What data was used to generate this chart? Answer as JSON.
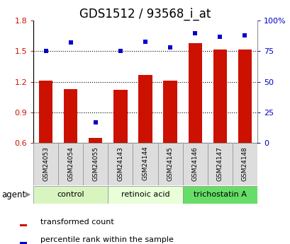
{
  "title": "GDS1512 / 93568_i_at",
  "samples": [
    "GSM24053",
    "GSM24054",
    "GSM24055",
    "GSM24143",
    "GSM24144",
    "GSM24145",
    "GSM24146",
    "GSM24147",
    "GSM24148"
  ],
  "bar_values": [
    1.21,
    1.13,
    0.65,
    1.12,
    1.27,
    1.21,
    1.58,
    1.52,
    1.52
  ],
  "percentile_values": [
    75,
    82,
    17,
    75,
    83,
    78,
    90,
    87,
    88
  ],
  "groups": [
    {
      "label": "control",
      "start": 0,
      "end": 3,
      "color": "#d8f5c0"
    },
    {
      "label": "retinoic acid",
      "start": 3,
      "end": 6,
      "color": "#e8ffd8"
    },
    {
      "label": "trichostatin A",
      "start": 6,
      "end": 9,
      "color": "#66dd66"
    }
  ],
  "bar_color": "#cc1100",
  "scatter_color": "#0000cc",
  "ylim_left": [
    0.6,
    1.8
  ],
  "ylim_right": [
    0,
    100
  ],
  "yticks_left": [
    0.6,
    0.9,
    1.2,
    1.5,
    1.8
  ],
  "yticks_right": [
    0,
    25,
    50,
    75,
    100
  ],
  "ytick_labels_right": [
    "0",
    "25",
    "50",
    "75",
    "100%"
  ],
  "grid_values": [
    0.9,
    1.2,
    1.5
  ],
  "title_fontsize": 12,
  "bar_width": 0.55,
  "background_color": "#ffffff",
  "agent_label": "agent",
  "legend_bar_label": "transformed count",
  "legend_scatter_label": "percentile rank within the sample",
  "sample_box_color": "#dddddd",
  "border_color": "#999999"
}
